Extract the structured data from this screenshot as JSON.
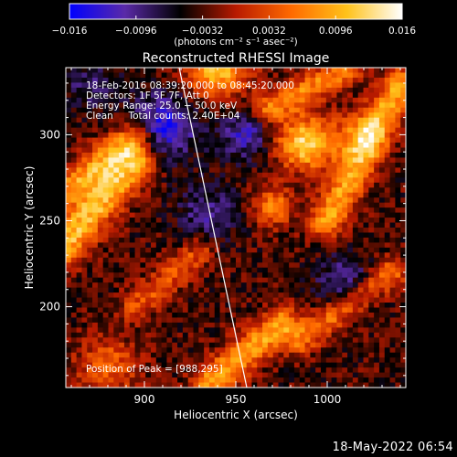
{
  "colorbar": {
    "tick_labels": [
      "−0.016",
      "−0.0096",
      "−0.0032",
      "0.0032",
      "0.0096",
      "0.016"
    ],
    "tick_values": [
      -0.016,
      -0.0096,
      -0.0032,
      0.0032,
      0.0096,
      0.016
    ],
    "range": [
      -0.016,
      0.016
    ],
    "unit_label": "(photons cm⁻² s⁻¹ asec⁻²)",
    "colors": [
      "#0000ff",
      "#5a2aa8",
      "#000000",
      "#b81a00",
      "#ff6a00",
      "#ffc21a",
      "#ffffff"
    ]
  },
  "chart_data": {
    "type": "heatmap",
    "title": "Reconstructed RHESSI Image",
    "xlabel": "Heliocentric X (arcsec)",
    "ylabel": "Heliocentric Y (arcsec)",
    "xlim": [
      857,
      1043
    ],
    "ylim": [
      153,
      339
    ],
    "x_ticks": [
      900,
      950,
      1000
    ],
    "y_ticks": [
      200,
      250,
      300
    ],
    "x_tick_labels": [
      "900",
      "950",
      "1000"
    ],
    "y_tick_labels": [
      "200",
      "250",
      "300"
    ],
    "info_lines": [
      "18-Feb-2016 08:39:20.000 to 08:45:20.000",
      "Detectors: 1F 5F 7F, Att 0",
      "Energy Range: 25.0 − 50.0 keV",
      "Clean     Total counts: 2.40E+04"
    ],
    "peak_label": "Position of Peak = [988,295]",
    "peak": [
      988,
      295
    ],
    "limb_line": [
      [
        919,
        339
      ],
      [
        956,
        153
      ]
    ],
    "features": [
      {
        "kind": "ridge",
        "from": [
          855,
          235
        ],
        "to": [
          895,
          285
        ],
        "width": 16,
        "amp": 0.014
      },
      {
        "kind": "ridge",
        "from": [
          860,
          270
        ],
        "to": [
          895,
          300
        ],
        "width": 14,
        "amp": 0.011
      },
      {
        "kind": "ridge",
        "from": [
          1000,
          250
        ],
        "to": [
          1040,
          330
        ],
        "width": 14,
        "amp": 0.012
      },
      {
        "kind": "ridge",
        "from": [
          968,
          315
        ],
        "to": [
          1010,
          338
        ],
        "width": 12,
        "amp": 0.01
      },
      {
        "kind": "ridge",
        "from": [
          935,
          155
        ],
        "to": [
          975,
          190
        ],
        "width": 14,
        "amp": 0.012
      },
      {
        "kind": "ridge",
        "from": [
          985,
          180
        ],
        "to": [
          1035,
          220
        ],
        "width": 12,
        "amp": 0.009
      },
      {
        "kind": "ridge",
        "from": [
          895,
          200
        ],
        "to": [
          930,
          232
        ],
        "width": 12,
        "amp": 0.007
      },
      {
        "kind": "blob",
        "at": [
          940,
          338
        ],
        "r": 12,
        "amp": 0.014
      },
      {
        "kind": "blob",
        "at": [
          988,
          295
        ],
        "r": 11,
        "amp": 0.016
      },
      {
        "kind": "blob",
        "at": [
          970,
          258
        ],
        "r": 8,
        "amp": 0.01
      },
      {
        "kind": "blob",
        "at": [
          880,
          165
        ],
        "r": 12,
        "amp": 0.008
      },
      {
        "kind": "blob",
        "at": [
          1018,
          300
        ],
        "r": 10,
        "amp": 0.008
      },
      {
        "kind": "blob",
        "at": [
          910,
          305
        ],
        "r": 13,
        "amp": -0.011
      },
      {
        "kind": "blob",
        "at": [
          955,
          300
        ],
        "r": 10,
        "amp": -0.008
      },
      {
        "kind": "blob",
        "at": [
          1010,
          215
        ],
        "r": 11,
        "amp": -0.007
      },
      {
        "kind": "blob",
        "at": [
          935,
          255
        ],
        "r": 12,
        "amp": -0.006
      },
      {
        "kind": "blob",
        "at": [
          870,
          330
        ],
        "r": 10,
        "amp": -0.005
      }
    ]
  },
  "footer": {
    "date": "18-May-2022 06:54"
  }
}
